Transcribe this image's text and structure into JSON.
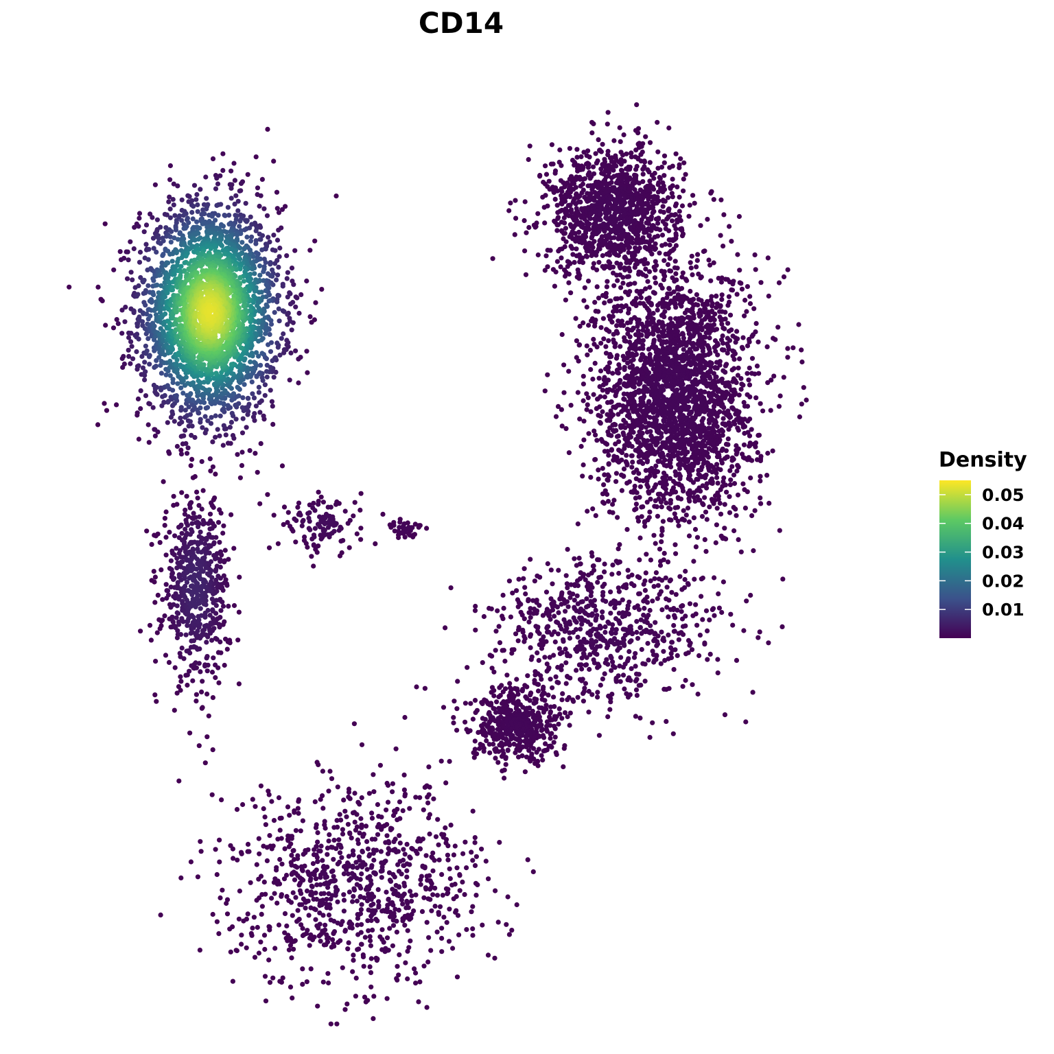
{
  "chart_data": {
    "type": "scatter",
    "title": "CD14",
    "xlabel": "",
    "ylabel": "",
    "grid": false,
    "axes_shown": false,
    "color_scale": {
      "name": "viridis",
      "legend_title": "Density",
      "range": [
        0.0,
        0.055
      ],
      "ticks": [
        0.01,
        0.02,
        0.03,
        0.04,
        0.05
      ],
      "tick_labels": [
        "0.01",
        "0.02",
        "0.03",
        "0.04",
        "0.05"
      ],
      "stops": [
        "#440154",
        "#3b528b",
        "#21908c",
        "#5dc963",
        "#fde725"
      ]
    },
    "legend_position": "right",
    "xlim": [
      0,
      100
    ],
    "ylim": [
      0,
      100
    ],
    "clusters": [
      {
        "label": "main-density-cluster",
        "center": [
          19.5,
          75.0
        ],
        "spread": [
          4.2,
          5.8
        ],
        "density_peak": 0.053,
        "approx_points": 3000
      },
      {
        "label": "lower-tail",
        "center": [
          17.8,
          45.0
        ],
        "spread": [
          2.0,
          5.0
        ],
        "density_peak": 0.006,
        "approx_points": 600
      },
      {
        "label": "top-right-blob",
        "center": [
          68.0,
          86.0
        ],
        "spread": [
          4.0,
          3.5
        ],
        "density_peak": 0.001,
        "approx_points": 1200
      },
      {
        "label": "right-large-cluster",
        "center": [
          75.5,
          66.0
        ],
        "spread": [
          4.8,
          7.0
        ],
        "density_peak": 0.001,
        "approx_points": 2500
      },
      {
        "label": "right-arm",
        "center": [
          67.0,
          40.5
        ],
        "spread": [
          7.0,
          4.0
        ],
        "density_peak": 0.001,
        "approx_points": 700
      },
      {
        "label": "right-lower-blob",
        "center": [
          56.5,
          30.0
        ],
        "spread": [
          2.8,
          2.0
        ],
        "density_peak": 0.001,
        "approx_points": 500
      },
      {
        "label": "bottom-ring",
        "center": [
          37.0,
          13.0
        ],
        "spread": [
          7.5,
          5.5
        ],
        "density_peak": 0.001,
        "approx_points": 900
      },
      {
        "label": "middle-small-cluster",
        "center": [
          33.0,
          52.0
        ],
        "spread": [
          2.5,
          1.5
        ],
        "density_peak": 0.002,
        "approx_points": 120
      },
      {
        "label": "center-small-cluster",
        "center": [
          43.0,
          51.5
        ],
        "spread": [
          1.0,
          0.6
        ],
        "density_peak": 0.001,
        "approx_points": 40
      }
    ]
  }
}
